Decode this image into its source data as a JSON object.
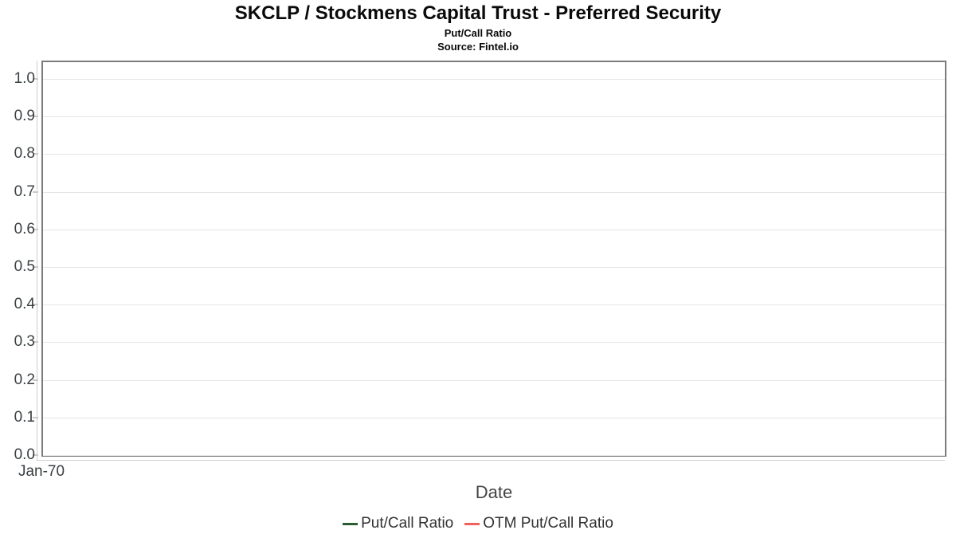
{
  "header": {
    "title": "SKCLP / Stockmens Capital Trust - Preferred Security",
    "subtitle": "Put/Call Ratio",
    "source": "Source: Fintel.io"
  },
  "chart_data": {
    "type": "line",
    "title": "SKCLP / Stockmens Capital Trust - Preferred Security",
    "subtitle": "Put/Call Ratio",
    "source": "Source: Fintel.io",
    "xlabel": "Date",
    "ylabel": "",
    "x_tick_labels": [
      "Jan-70"
    ],
    "y_tick_labels": [
      "1.0",
      "0.9",
      "0.8",
      "0.7",
      "0.6",
      "0.5",
      "0.4",
      "0.3",
      "0.2",
      "0.1",
      "0.0"
    ],
    "ylim": [
      0.0,
      1.05
    ],
    "grid": true,
    "legend_position": "bottom-center",
    "series": [
      {
        "name": "Put/Call Ratio",
        "color": "#2b5c34",
        "x": [],
        "values": []
      },
      {
        "name": "OTM Put/Call Ratio",
        "color": "#f4615c",
        "x": [],
        "values": []
      }
    ]
  },
  "colors": {
    "plot_border": "#7b7b7b",
    "gridline": "#e6e6e6",
    "axis_line": "#cfcfcf",
    "tick_label": "#3c4043",
    "axis_title": "#444444",
    "legend_text": "#333333",
    "background": "#ffffff"
  }
}
